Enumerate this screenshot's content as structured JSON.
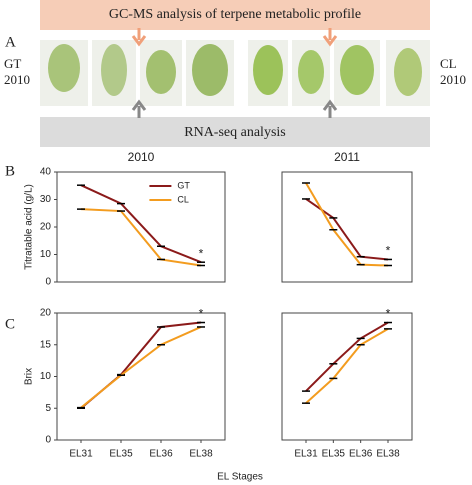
{
  "figure": {
    "panel_labels": [
      "A",
      "B",
      "C"
    ],
    "banner_top": "GC-MS analysis of terpene metabolic profile",
    "banner_bottom": "RNA-seq analysis",
    "left_sample": "GT\n2010",
    "right_sample": "CL\n2010",
    "xlabel": "EL Stages"
  },
  "chart_data": [
    {
      "type": "line",
      "title": "2010",
      "ylabel": "Titratable acid (g/L)",
      "ylim": [
        0,
        40
      ],
      "yticks": [
        0,
        10,
        20,
        30,
        40
      ],
      "legend": "upper right",
      "annotation": "*",
      "series": [
        {
          "name": "GT",
          "color": "#8b1a1a",
          "values": [
            35.2,
            28.5,
            13,
            7.2
          ]
        },
        {
          "name": "CL",
          "color": "#f39c1f",
          "values": [
            26.5,
            25.8,
            8.2,
            6
          ]
        }
      ]
    },
    {
      "type": "line",
      "title": "2011",
      "ylim": [
        0,
        40
      ],
      "annotation": "*",
      "series": [
        {
          "name": "GT",
          "color": "#8b1a1a",
          "values": [
            30.2,
            23.3,
            9.2,
            8.2
          ]
        },
        {
          "name": "CL",
          "color": "#f39c1f",
          "values": [
            36,
            19,
            6.3,
            6
          ]
        }
      ]
    },
    {
      "type": "line",
      "ylabel": "Brix",
      "categories": [
        "EL31",
        "EL35",
        "EL36",
        "EL38"
      ],
      "ylim": [
        0,
        20
      ],
      "yticks": [
        0,
        5,
        10,
        15,
        20
      ],
      "annotation": "*",
      "series": [
        {
          "name": "GT",
          "color": "#8b1a1a",
          "values": [
            5,
            10.3,
            17.8,
            18.5
          ]
        },
        {
          "name": "CL",
          "color": "#f39c1f",
          "values": [
            5.1,
            10.2,
            15,
            17.8
          ]
        }
      ]
    },
    {
      "type": "line",
      "categories": [
        "EL31",
        "EL35",
        "EL36",
        "EL38"
      ],
      "ylim": [
        0,
        20
      ],
      "annotation": "*",
      "series": [
        {
          "name": "GT",
          "color": "#8b1a1a",
          "values": [
            7.7,
            12,
            16,
            18.5
          ]
        },
        {
          "name": "CL",
          "color": "#f39c1f",
          "values": [
            5.8,
            9.7,
            15,
            17.5
          ]
        }
      ]
    }
  ]
}
